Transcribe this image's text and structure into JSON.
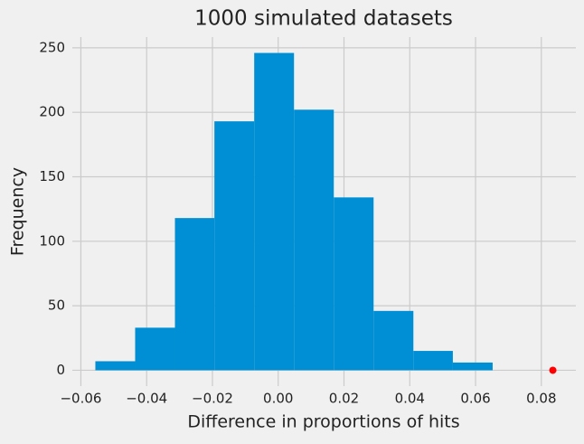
{
  "chart_data": {
    "type": "histogram",
    "title": "1000 simulated datasets",
    "x_label": "Difference in proportions of hits",
    "y_label": "Frequency",
    "bins": [
      -0.0556,
      -0.0435,
      -0.0314,
      -0.0194,
      -0.0073,
      0.0048,
      0.0169,
      0.029,
      0.0411,
      0.0531,
      0.0652
    ],
    "counts": [
      7,
      33,
      118,
      193,
      246,
      202,
      134,
      46,
      15,
      6
    ],
    "color": "#008fd5",
    "point": {
      "x": 0.0835,
      "y": 0,
      "color": "#ff0000"
    },
    "xlim": [
      -0.0626,
      0.0905
    ],
    "xticks": [
      {
        "value": -0.06,
        "label": "−0.06"
      },
      {
        "value": -0.04,
        "label": "−0.04"
      },
      {
        "value": -0.02,
        "label": "−0.02"
      },
      {
        "value": 0,
        "label": "0.00"
      },
      0.02,
      0.04,
      0.06,
      0.08
    ],
    "ylim": [
      -12.3,
      258.3
    ],
    "yticks": [
      0,
      50,
      100,
      150,
      200,
      250
    ],
    "grid": true
  }
}
